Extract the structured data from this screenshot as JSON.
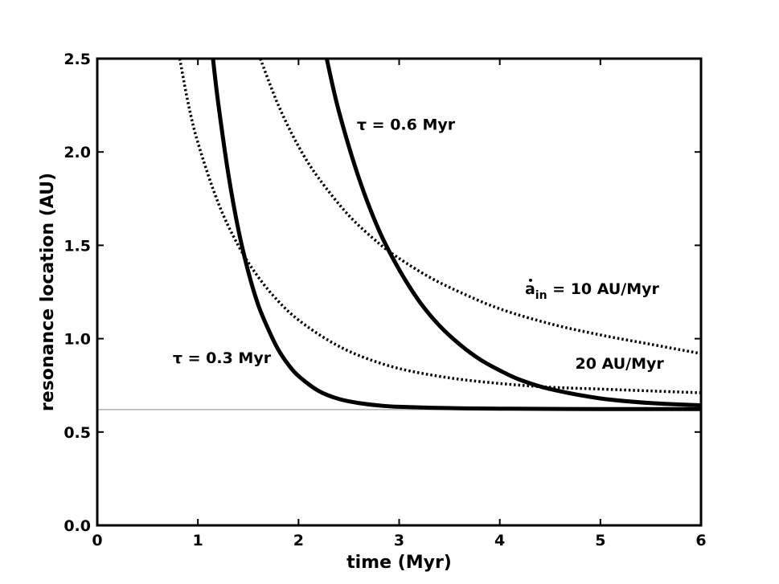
{
  "chart_data": {
    "type": "line",
    "title": "",
    "xlabel": "time (Myr)",
    "ylabel": "resonance location (AU)",
    "xlim": [
      0,
      6
    ],
    "ylim": [
      0,
      2.5
    ],
    "xticks": [
      "0",
      "1",
      "2",
      "3",
      "4",
      "5",
      "6"
    ],
    "yticks": [
      "0.0",
      "0.5",
      "1.0",
      "1.5",
      "2.0",
      "2.5"
    ],
    "grid": false,
    "legend": "none",
    "reference_line": {
      "y": 0.62,
      "color": "#b0b0b0"
    },
    "series": [
      {
        "style": "solid",
        "x": [
          1.15,
          1.2,
          1.3,
          1.4,
          1.5,
          1.6,
          1.7,
          1.8,
          1.9,
          2.0,
          2.2,
          2.4,
          2.6,
          2.8,
          3.0,
          3.5,
          4.0,
          5.0,
          6.0
        ],
        "y": [
          2.5,
          2.27,
          1.89,
          1.59,
          1.36,
          1.18,
          1.05,
          0.94,
          0.86,
          0.8,
          0.72,
          0.677,
          0.655,
          0.642,
          0.635,
          0.628,
          0.625,
          0.623,
          0.623
        ]
      },
      {
        "style": "solid",
        "x": [
          2.28,
          2.4,
          2.6,
          2.8,
          3.0,
          3.2,
          3.4,
          3.6,
          3.8,
          4.0,
          4.2,
          4.5,
          5.0,
          5.5,
          6.0
        ],
        "y": [
          2.5,
          2.22,
          1.86,
          1.58,
          1.37,
          1.2,
          1.07,
          0.97,
          0.89,
          0.83,
          0.78,
          0.73,
          0.68,
          0.655,
          0.643
        ]
      },
      {
        "style": "dotted",
        "x": [
          0.82,
          0.9,
          1.0,
          1.2,
          1.4,
          1.6,
          1.8,
          2.0,
          2.3,
          2.6,
          3.0,
          3.5,
          4.0,
          4.5,
          5.0,
          5.5,
          6.0
        ],
        "y": [
          2.5,
          2.27,
          2.05,
          1.73,
          1.5,
          1.33,
          1.2,
          1.1,
          0.99,
          0.91,
          0.84,
          0.79,
          0.76,
          0.74,
          0.73,
          0.72,
          0.71
        ]
      },
      {
        "style": "dotted",
        "x": [
          1.62,
          1.8,
          2.0,
          2.2,
          2.5,
          2.8,
          3.0,
          3.3,
          3.6,
          4.0,
          4.5,
          5.0,
          5.5,
          6.0
        ],
        "y": [
          2.5,
          2.25,
          2.03,
          1.86,
          1.66,
          1.51,
          1.43,
          1.33,
          1.25,
          1.16,
          1.08,
          1.02,
          0.97,
          0.92
        ]
      }
    ],
    "annotations": [
      {
        "id": "tau_short",
        "text": "τ = 0.3 Myr",
        "x": 0.75,
        "y": 0.87
      },
      {
        "id": "tau_long",
        "text": "τ = 0.6 Myr",
        "x": 2.58,
        "y": 2.12
      },
      {
        "id": "rate_10",
        "text": "ȧ_in = 10 AU/Myr",
        "x": 4.25,
        "y": 1.24
      },
      {
        "id": "rate_20",
        "text": "20 AU/Myr",
        "x": 4.75,
        "y": 0.84
      }
    ]
  },
  "labels": {
    "tau_short": "τ = 0.3 Myr",
    "tau_long": "τ = 0.6 Myr",
    "rate_10_symbol": "a",
    "rate_10_sub": "in",
    "rate_10_rest": " = 10 AU/Myr",
    "rate_20": "20 AU/Myr"
  }
}
